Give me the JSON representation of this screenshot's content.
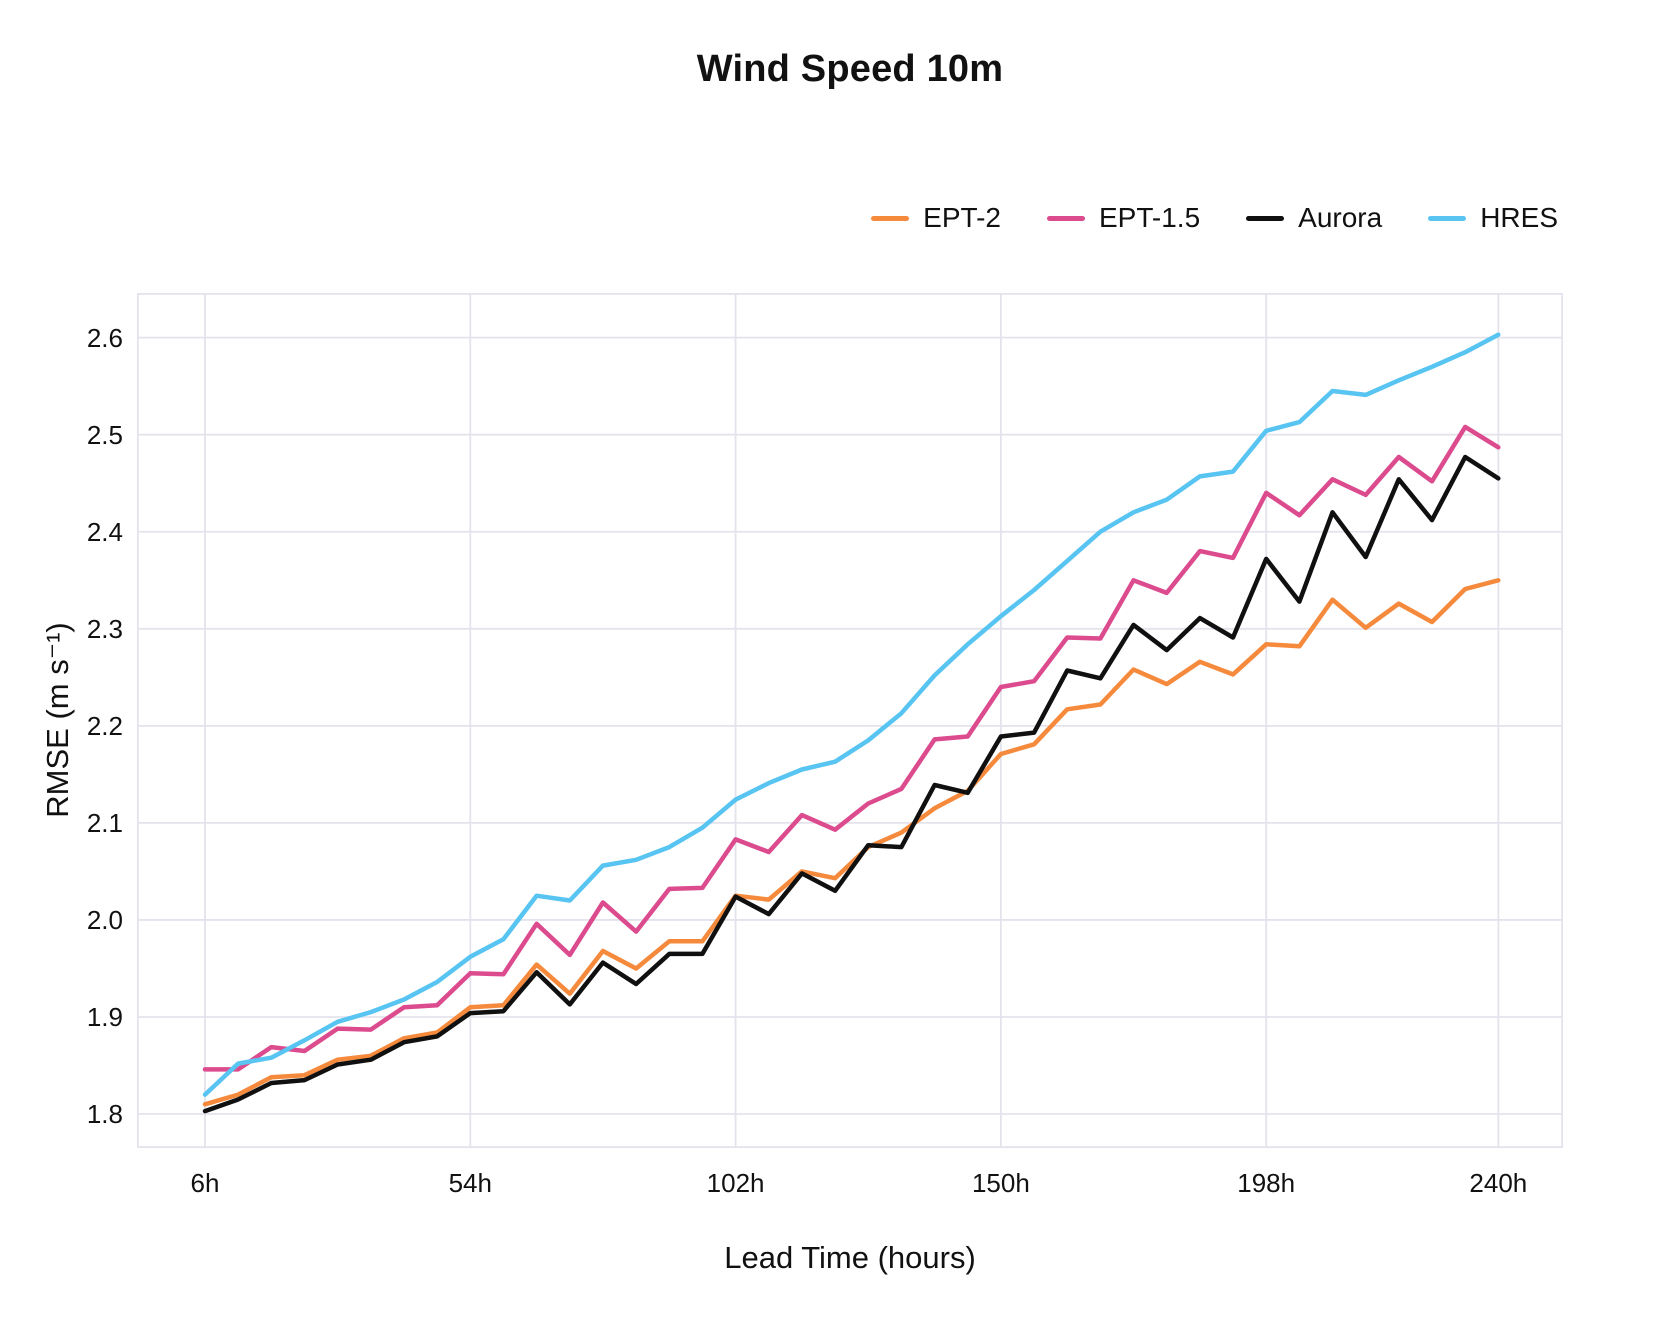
{
  "title": "Wind Speed 10m",
  "chart_data": {
    "type": "line",
    "title": "Wind Speed 10m",
    "xlabel": "Lead Time (hours)",
    "ylabel": "RMSE (m s⁻¹)",
    "grid": true,
    "legend_position": "top-right",
    "background": "#ffffff",
    "grid_color": "#e4e3ec",
    "text_color": "#111111",
    "xlim": [
      -6.3,
      251.7
    ],
    "ylim": [
      1.765,
      2.646
    ],
    "x_ticks": [
      6,
      54,
      102,
      150,
      198,
      240
    ],
    "x_tick_labels": [
      "6h",
      "54h",
      "102h",
      "150h",
      "198h",
      "240h"
    ],
    "y_ticks": [
      1.8,
      1.9,
      2.0,
      2.1,
      2.2,
      2.3,
      2.4,
      2.5,
      2.6
    ],
    "y_tick_labels": [
      "1.8",
      "1.9",
      "2.0",
      "2.1",
      "2.2",
      "2.3",
      "2.4",
      "2.5",
      "2.6"
    ],
    "x": [
      6,
      12,
      18,
      24,
      30,
      36,
      42,
      48,
      54,
      60,
      66,
      72,
      78,
      84,
      90,
      96,
      102,
      108,
      114,
      120,
      126,
      132,
      138,
      144,
      150,
      156,
      162,
      168,
      174,
      180,
      186,
      192,
      198,
      204,
      210,
      216,
      222,
      228,
      234,
      240
    ],
    "series": [
      {
        "name": "EPT-2",
        "color": "#F58A3D",
        "values": [
          1.81,
          1.82,
          1.838,
          1.84,
          1.856,
          1.86,
          1.878,
          1.884,
          1.91,
          1.912,
          1.954,
          1.924,
          1.968,
          1.95,
          1.978,
          1.978,
          2.025,
          2.021,
          2.05,
          2.043,
          2.075,
          2.09,
          2.115,
          2.133,
          2.171,
          2.181,
          2.217,
          2.222,
          2.258,
          2.243,
          2.266,
          2.253,
          2.284,
          2.282,
          2.33,
          2.301,
          2.326,
          2.307,
          2.341,
          2.35
        ]
      },
      {
        "name": "EPT-1.5",
        "color": "#DB4B8E",
        "values": [
          1.846,
          1.846,
          1.869,
          1.865,
          1.888,
          1.887,
          1.91,
          1.912,
          1.945,
          1.944,
          1.996,
          1.964,
          2.018,
          1.988,
          2.032,
          2.033,
          2.083,
          2.07,
          2.108,
          2.093,
          2.12,
          2.135,
          2.186,
          2.189,
          2.24,
          2.246,
          2.291,
          2.29,
          2.35,
          2.337,
          2.38,
          2.373,
          2.44,
          2.417,
          2.454,
          2.438,
          2.477,
          2.452,
          2.508,
          2.487
        ]
      },
      {
        "name": "Aurora",
        "color": "#101010",
        "values": [
          1.803,
          1.815,
          1.832,
          1.835,
          1.851,
          1.856,
          1.874,
          1.88,
          1.904,
          1.906,
          1.946,
          1.913,
          1.956,
          1.934,
          1.965,
          1.965,
          2.024,
          2.006,
          2.048,
          2.03,
          2.077,
          2.075,
          2.139,
          2.131,
          2.189,
          2.193,
          2.257,
          2.249,
          2.304,
          2.278,
          2.311,
          2.291,
          2.372,
          2.328,
          2.42,
          2.374,
          2.454,
          2.412,
          2.477,
          2.455
        ]
      },
      {
        "name": "HRES",
        "color": "#58C4F2",
        "values": [
          1.82,
          1.852,
          1.858,
          1.876,
          1.895,
          1.905,
          1.918,
          1.936,
          1.962,
          1.98,
          2.025,
          2.02,
          2.056,
          2.062,
          2.075,
          2.095,
          2.124,
          2.141,
          2.155,
          2.163,
          2.185,
          2.213,
          2.252,
          2.284,
          2.313,
          2.34,
          2.37,
          2.4,
          2.42,
          2.433,
          2.457,
          2.462,
          2.504,
          2.513,
          2.545,
          2.541,
          2.556,
          2.57,
          2.585,
          2.603
        ]
      }
    ],
    "line_width": 4.5
  }
}
